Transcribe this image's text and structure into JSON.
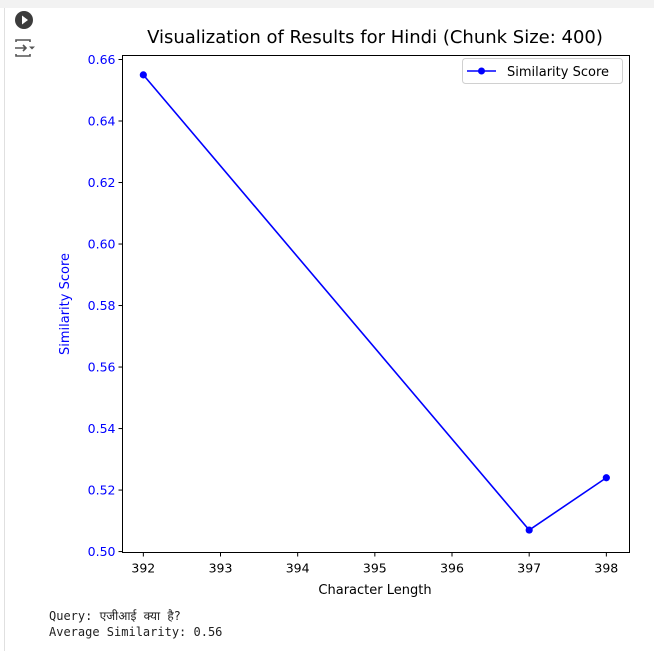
{
  "cell": {
    "run_icon": "play-circle-icon",
    "output_icon": "output-toggle-icon"
  },
  "colors": {
    "series": "#0000ff",
    "ytick": "#0000ff",
    "ylabel": "#0000ff",
    "axis": "#000000"
  },
  "chart_data": {
    "type": "line",
    "title": "Visualization of Results for Hindi (Chunk Size: 400)",
    "xlabel": "Character Length",
    "ylabel": "Similarity Score",
    "xlim": [
      391.73,
      398.3
    ],
    "ylim": [
      0.4997,
      0.6613
    ],
    "xticks": [
      392,
      393,
      394,
      395,
      396,
      397,
      398
    ],
    "yticks": [
      0.5,
      0.52,
      0.54,
      0.56,
      0.58,
      0.6,
      0.62,
      0.64,
      0.66
    ],
    "ytick_labels": [
      "0.50",
      "0.52",
      "0.54",
      "0.56",
      "0.58",
      "0.60",
      "0.62",
      "0.64",
      "0.66"
    ],
    "grid": false,
    "legend": "top-right",
    "series": [
      {
        "name": "Similarity Score",
        "x": [
          392,
          397,
          398
        ],
        "y": [
          0.655,
          0.507,
          0.524
        ],
        "marker": "circle"
      }
    ]
  },
  "output": {
    "query_line": "Query: एजीआई क्या है?",
    "average_line": "Average Similarity: 0.56"
  }
}
